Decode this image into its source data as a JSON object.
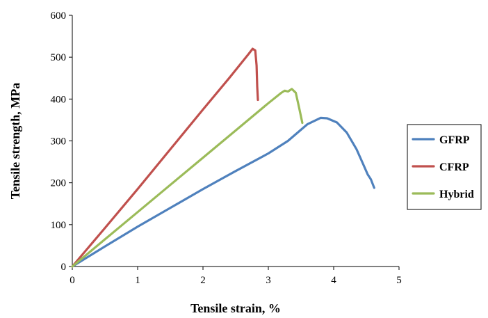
{
  "chart_data": {
    "type": "line",
    "title": "",
    "xlabel": "Tensile strain, %",
    "ylabel": "Tensile strength, MPa",
    "xlim": [
      0,
      5
    ],
    "ylim": [
      0,
      600
    ],
    "xticks": [
      "0",
      "1",
      "2",
      "3",
      "4",
      "5"
    ],
    "yticks": [
      "0",
      "100",
      "200",
      "300",
      "400",
      "500",
      "600"
    ],
    "grid": false,
    "legend_position": "right",
    "series": [
      {
        "name": "GFRP",
        "color": "#4f81bd",
        "x": [
          0,
          0.5,
          1.0,
          1.5,
          2.0,
          2.5,
          3.0,
          3.3,
          3.6,
          3.8,
          3.9,
          4.05,
          4.2,
          4.35,
          4.45,
          4.52,
          4.57,
          4.62
        ],
        "y": [
          0,
          48,
          95,
          140,
          185,
          228,
          270,
          300,
          340,
          355,
          354,
          344,
          320,
          280,
          245,
          220,
          208,
          188
        ]
      },
      {
        "name": "CFRP",
        "color": "#c0504d",
        "x": [
          0,
          0.5,
          1.0,
          1.5,
          2.0,
          2.4,
          2.7,
          2.76,
          2.8,
          2.82,
          2.83,
          2.84
        ],
        "y": [
          0,
          92,
          185,
          280,
          375,
          450,
          508,
          520,
          516,
          480,
          430,
          398
        ]
      },
      {
        "name": "Hybrid",
        "color": "#9bbb59",
        "x": [
          0,
          0.5,
          1.0,
          1.5,
          2.0,
          2.5,
          3.0,
          3.2,
          3.25,
          3.3,
          3.36,
          3.42,
          3.47,
          3.52
        ],
        "y": [
          0,
          65,
          130,
          195,
          260,
          325,
          390,
          415,
          420,
          418,
          424,
          415,
          380,
          343
        ]
      }
    ]
  }
}
